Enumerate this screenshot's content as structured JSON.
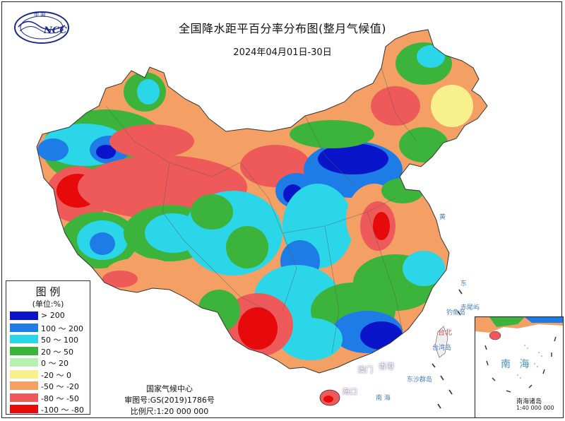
{
  "header": {
    "title": "全国降水距平百分率分布图(整月气候值)",
    "date_range": "2024年04月01日-30日",
    "logo_text": "NCC",
    "logo_top_text": "中 国"
  },
  "legend": {
    "title": "图 例",
    "unit": "(单位:%)",
    "items": [
      {
        "label": "> 200",
        "color": "#0a14c8"
      },
      {
        "label": "100 ～ 200",
        "color": "#1e7ce6"
      },
      {
        "label": "50 ～ 100",
        "color": "#2ad6e8"
      },
      {
        "label": "20 ～ 50",
        "color": "#3cb43c"
      },
      {
        "label": "0 ～ 20",
        "color": "#b8f0b0"
      },
      {
        "label": "-20 ～ 0",
        "color": "#f8f08c"
      },
      {
        "label": "-50 ～ -20",
        "color": "#f4a064"
      },
      {
        "label": "-80 ～ -50",
        "color": "#ee5a5a"
      },
      {
        "label": "-100 ～ -80",
        "color": "#e60a0a"
      }
    ]
  },
  "credits": {
    "org": "国家气候中心",
    "map_no": "审图号:GS(2019)1786号",
    "scale": "比例尺:1:20 000 000"
  },
  "inset": {
    "sea_name": "南 海",
    "islands": "南海诸岛",
    "scale": "1:40 000 000"
  },
  "map_labels": {
    "taibei": "台北",
    "taiwan": "台湾岛",
    "diaoyu": "钓鱼岛",
    "chiwei": "赤尾屿",
    "hongkong": "香港",
    "macau": "澳门",
    "haikou": "海口",
    "dongsha": "东沙群岛",
    "sea_south": "南 海",
    "sea_east": "东",
    "sea_yellow": "黄"
  }
}
